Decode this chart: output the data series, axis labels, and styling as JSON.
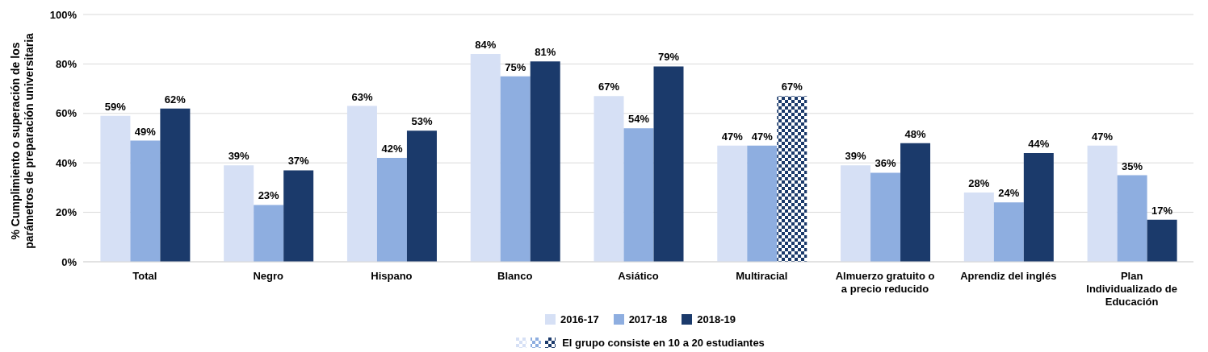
{
  "chart_data": {
    "type": "bar",
    "ylabel": "% Cumplimiento o superación de los parámetros de preparación universitaria",
    "categories": [
      "Total",
      "Negro",
      "Hispano",
      "Blanco",
      "Asiático",
      "Multiracial",
      "Almuerzo gratuito o a precio reducido",
      "Aprendiz del inglés",
      "Plan Individualizado de Educación"
    ],
    "series": [
      {
        "name": "2016-17",
        "color": "#d6e0f5",
        "values": [
          59,
          39,
          63,
          84,
          67,
          47,
          39,
          28,
          47
        ],
        "value_labels": [
          "59%",
          "39%",
          "63%",
          "84%",
          "67%",
          "47%",
          "39%",
          "28%",
          "47%"
        ]
      },
      {
        "name": "2017-18",
        "color": "#8eaee0",
        "values": [
          49,
          23,
          42,
          75,
          54,
          47,
          36,
          24,
          35
        ],
        "value_labels": [
          "49%",
          "23%",
          "42%",
          "75%",
          "54%",
          "47%",
          "36%",
          "24%",
          "35%"
        ]
      },
      {
        "name": "2018-19",
        "color": "#1b3a6b",
        "colors": [
          "#1b3a6b",
          "#1b3a6b",
          "#1b3a6b",
          "#1b3a6b",
          "#1b3a6b",
          "#8d9cb5",
          "#1b3a6b",
          "#1b3a6b",
          "#1b3a6b"
        ],
        "values": [
          62,
          37,
          53,
          81,
          79,
          67,
          48,
          44,
          17
        ],
        "value_labels": [
          "62%",
          "37%",
          "53%",
          "81%",
          "79%",
          "67%",
          "48%",
          "44%",
          "17%"
        ]
      }
    ],
    "ylim": [
      0,
      100
    ],
    "yticks": [
      {
        "value": 0,
        "label": "0%"
      },
      {
        "value": 20,
        "label": "20%"
      },
      {
        "value": 40,
        "label": "40%"
      },
      {
        "value": 60,
        "label": "60%"
      },
      {
        "value": 80,
        "label": "80%"
      },
      {
        "value": 100,
        "label": "100%"
      }
    ],
    "grid": "y",
    "legend": "bottom",
    "annotations": [
      "El grupo consiste en 10 a 20 estudiantes"
    ]
  }
}
